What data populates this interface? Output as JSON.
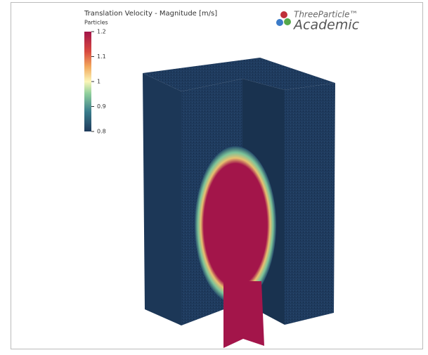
{
  "colorbar": {
    "title": "Translation Velocity - Magnitude [m/s]",
    "subtitle": "Particles",
    "range": [
      0.8,
      1.2
    ],
    "ticks": [
      1.2,
      1.1,
      1,
      0.9,
      0.8
    ]
  },
  "logo": {
    "name": "ThreeParticle™",
    "edition": "Academic"
  }
}
